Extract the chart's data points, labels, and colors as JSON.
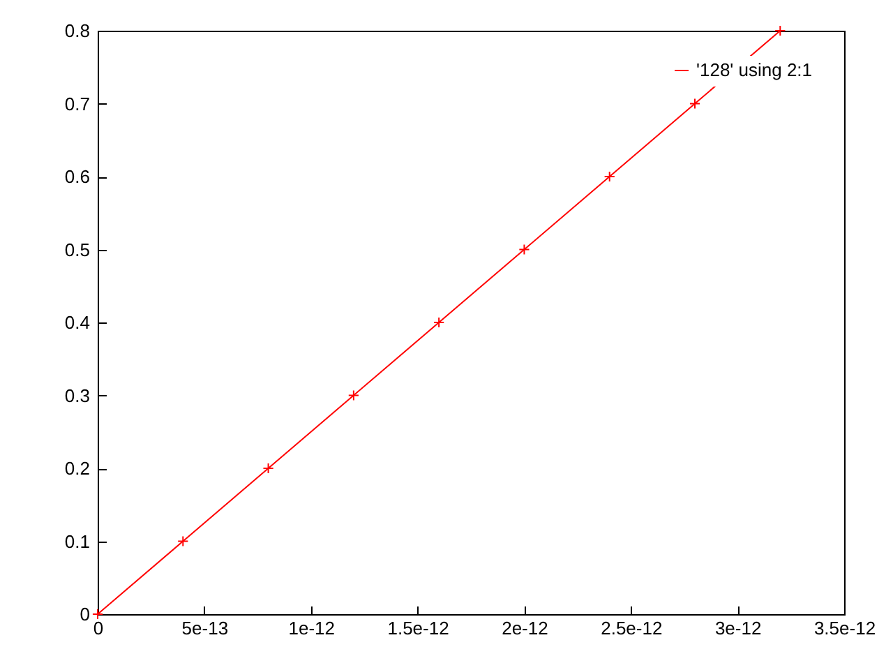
{
  "chart_data": {
    "type": "line",
    "x": [
      0,
      4e-13,
      8e-13,
      1.2e-12,
      1.6e-12,
      2e-12,
      2.4e-12,
      2.8e-12,
      3.2e-12
    ],
    "series": [
      {
        "name": "'128' using 2:1",
        "color": "#ff0000",
        "values": [
          0,
          0.1,
          0.2,
          0.3,
          0.4,
          0.5,
          0.6,
          0.7,
          0.8
        ]
      }
    ],
    "xlim": [
      0,
      3.5e-12
    ],
    "xticks": [
      0,
      5e-13,
      1e-12,
      1.5e-12,
      2e-12,
      2.5e-12,
      3e-12,
      3.5e-12
    ],
    "ylim": [
      0,
      0.8
    ],
    "yticks": [
      0,
      0.1,
      0.2,
      0.3,
      0.4,
      0.5,
      0.6,
      0.7,
      0.8
    ],
    "marker": "cross",
    "line_style": "solid",
    "legend": "top right",
    "grid": false
  }
}
